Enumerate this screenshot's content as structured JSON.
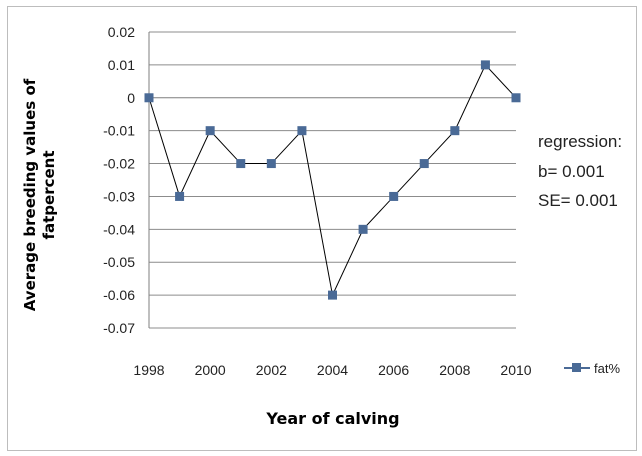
{
  "chart_data": {
    "type": "line",
    "title": "",
    "xlabel": "Year of calving",
    "ylabel": "Average breeding values of fatpercent",
    "x": [
      1998,
      1999,
      2000,
      2001,
      2002,
      2003,
      2004,
      2005,
      2006,
      2007,
      2008,
      2009,
      2010
    ],
    "x_tick_labels": [
      "1998",
      "2000",
      "2002",
      "2004",
      "2006",
      "2008",
      "2010"
    ],
    "y_tick_labels": [
      "0.02",
      "0.01",
      "0",
      "-0.01",
      "-0.02",
      "-0.03",
      "-0.04",
      "-0.05",
      "-0.06",
      "-0.07"
    ],
    "ylim": [
      -0.07,
      0.02
    ],
    "xlim": [
      1998,
      2010
    ],
    "grid": true,
    "legend_position": "right",
    "series": [
      {
        "name": "fat%",
        "values": [
          0,
          -0.03,
          -0.01,
          -0.02,
          -0.02,
          -0.01,
          -0.06,
          -0.04,
          -0.03,
          -0.02,
          -0.01,
          0.01,
          0
        ],
        "color": "#4a6a96",
        "marker": "square"
      }
    ],
    "annotations": [
      "regression:",
      "b= 0.001",
      "SE= 0.001"
    ]
  }
}
